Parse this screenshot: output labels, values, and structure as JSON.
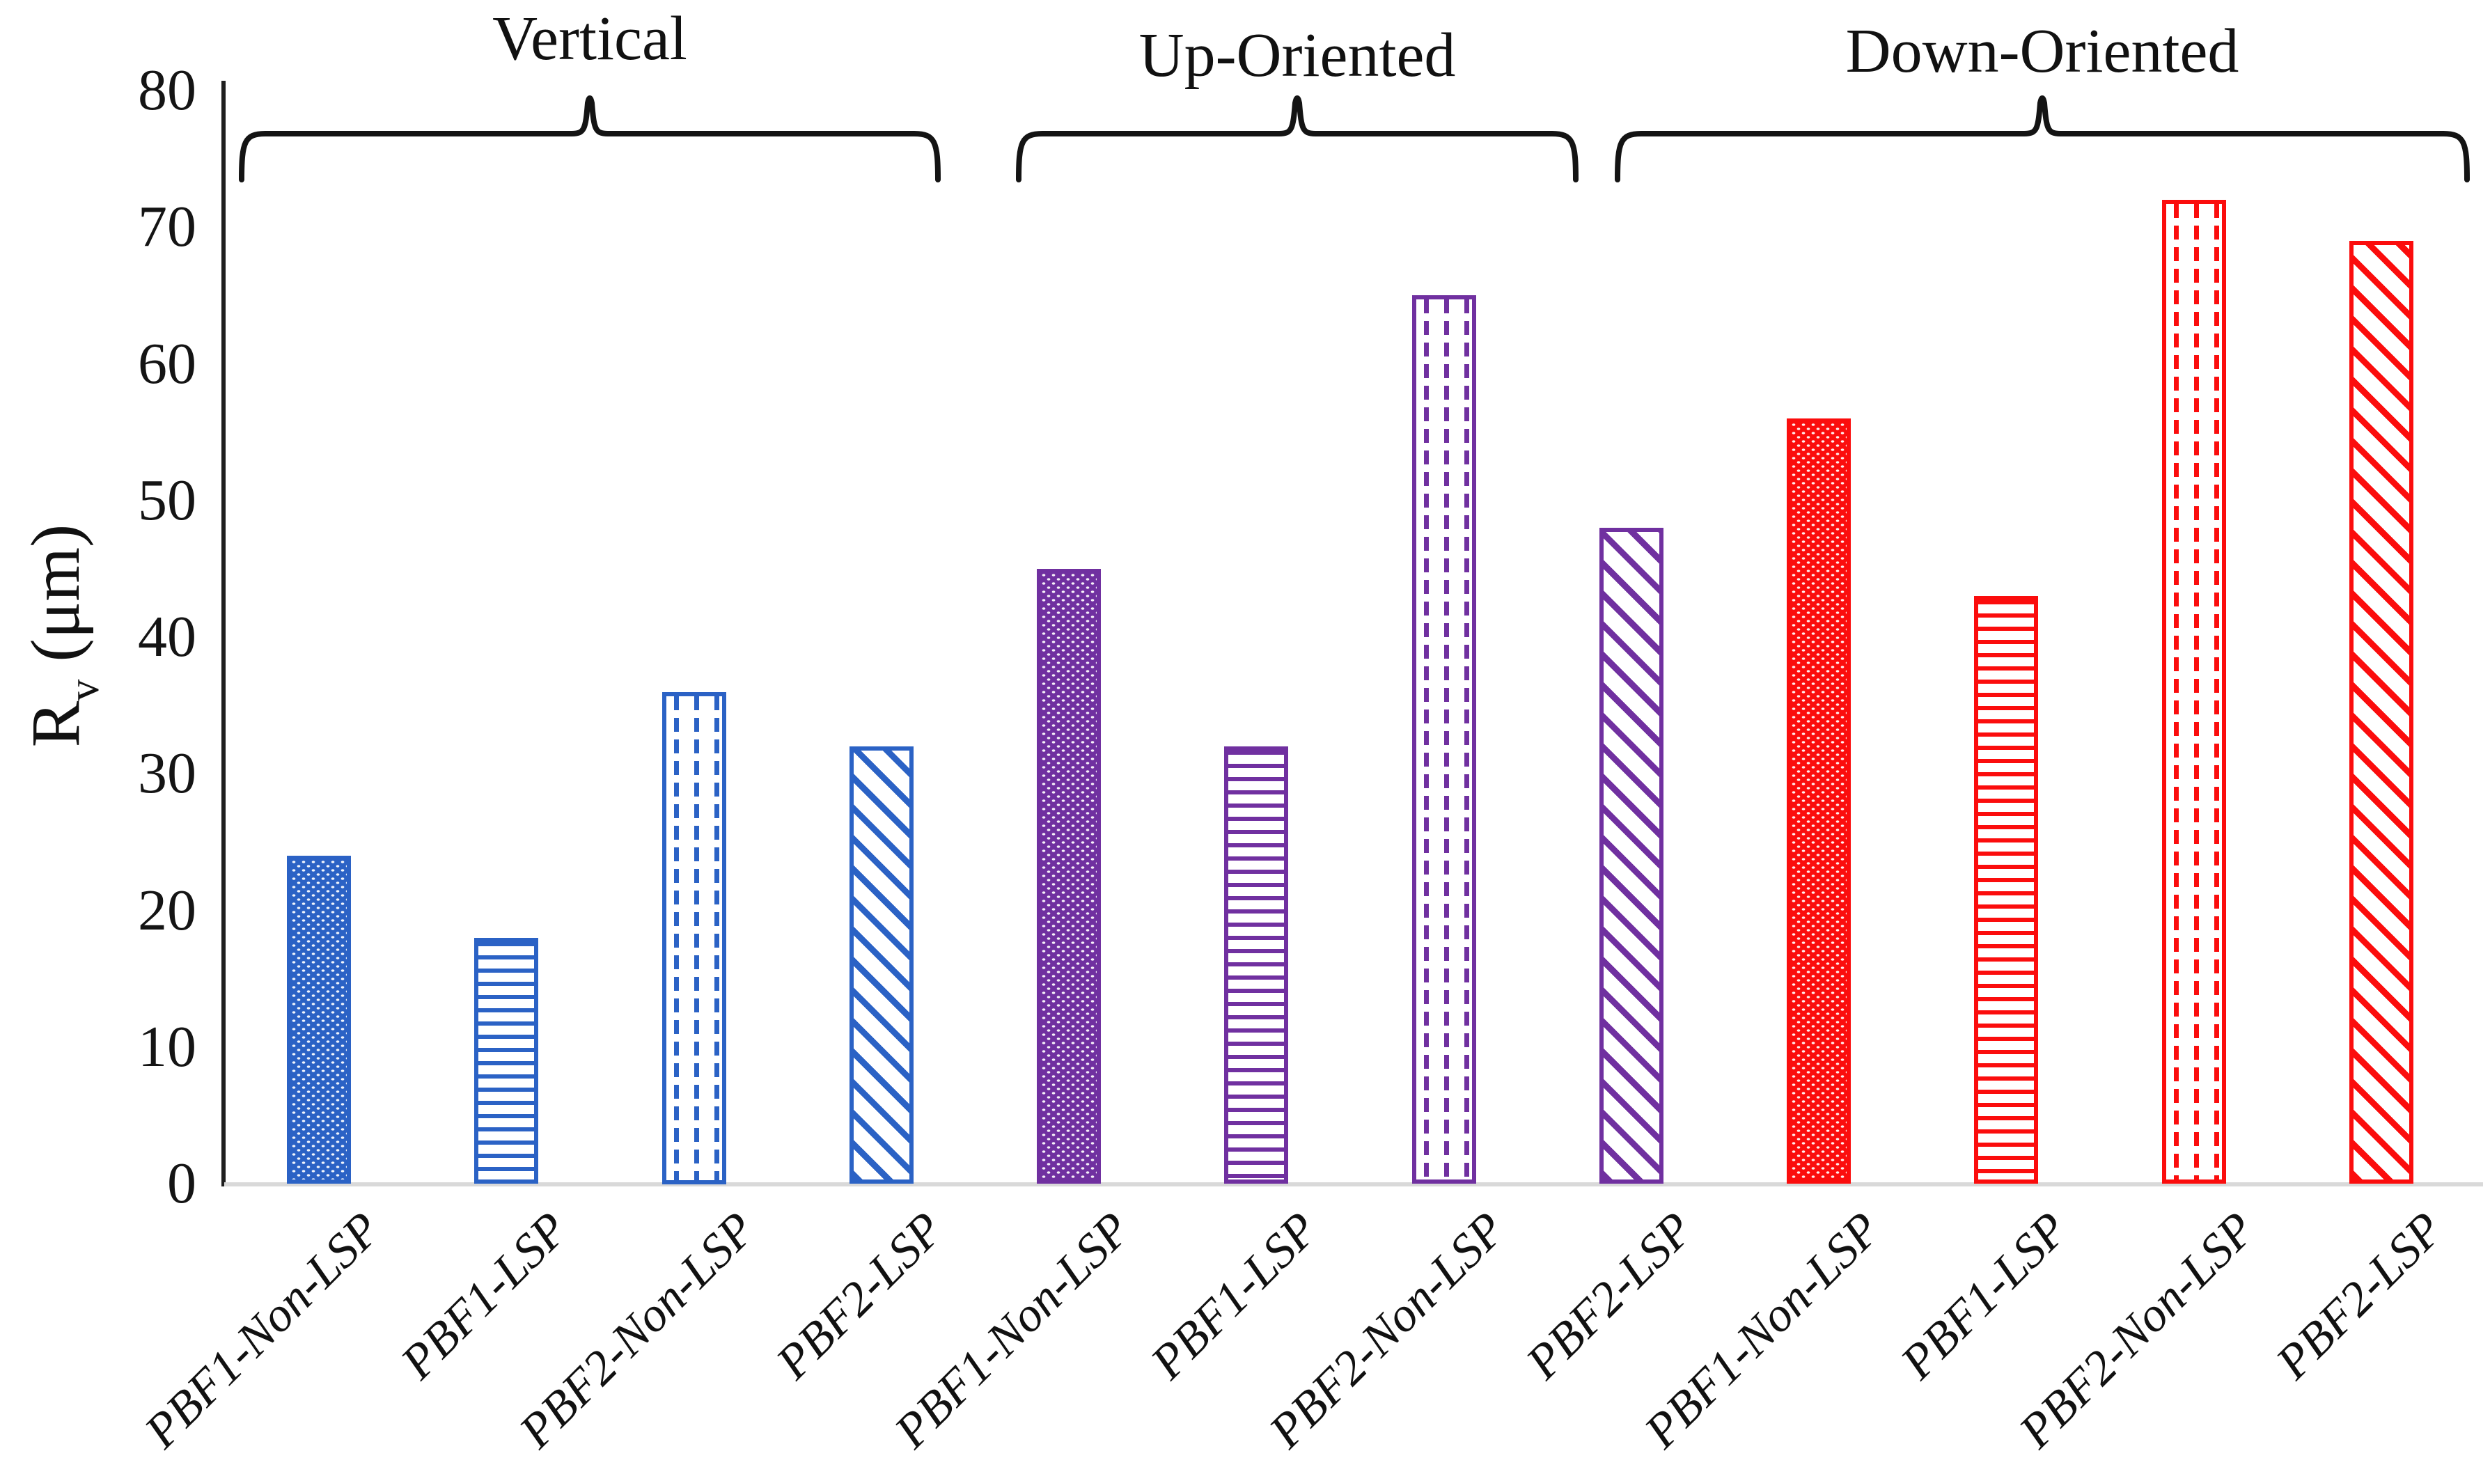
{
  "chart_data": {
    "type": "bar",
    "title": "",
    "ylabel_main": "R",
    "ylabel_sub": "v",
    "ylabel_unit": " (μm)",
    "ylabel_text": "Rv (μm)",
    "ylim": [
      0,
      80
    ],
    "yticks": [
      "0",
      "10",
      "20",
      "30",
      "40",
      "50",
      "60",
      "70",
      "80"
    ],
    "grid": false,
    "legend": false,
    "axis_color": "#1f1f1f",
    "baseline_color": "#d9d9d9",
    "categories_per_group": [
      "PBF1-Non-LSP",
      "PBF1-LSP",
      "PBF2-Non-LSP",
      "PBF2-LSP"
    ],
    "groups": [
      {
        "label": "Vertical",
        "color": "#2b62c5",
        "bars": [
          {
            "category": "PBF1-Non-LSP",
            "value": 24,
            "pattern": "dot-weave"
          },
          {
            "category": "PBF1-LSP",
            "value": 18,
            "pattern": "horizontal-lines"
          },
          {
            "category": "PBF2-Non-LSP",
            "value": 36,
            "pattern": "vertical-dashes"
          },
          {
            "category": "PBF2-LSP",
            "value": 32,
            "pattern": "diagonal-stripes"
          }
        ]
      },
      {
        "label": "Up-Oriented",
        "color": "#7030a0",
        "bars": [
          {
            "category": "PBF1-Non-LSP",
            "value": 45,
            "pattern": "dot-weave"
          },
          {
            "category": "PBF1-LSP",
            "value": 32,
            "pattern": "horizontal-lines"
          },
          {
            "category": "PBF2-Non-LSP",
            "value": 65,
            "pattern": "vertical-dashes"
          },
          {
            "category": "PBF2-LSP",
            "value": 48,
            "pattern": "diagonal-stripes"
          }
        ]
      },
      {
        "label": "Down-Oriented",
        "color": "#fb0d0d",
        "bars": [
          {
            "category": "PBF1-Non-LSP",
            "value": 56,
            "pattern": "dot-weave"
          },
          {
            "category": "PBF1-LSP",
            "value": 43,
            "pattern": "horizontal-lines"
          },
          {
            "category": "PBF2-Non-LSP",
            "value": 72,
            "pattern": "vertical-dashes"
          },
          {
            "category": "PBF2-LSP",
            "value": 69,
            "pattern": "diagonal-stripes"
          }
        ]
      }
    ]
  }
}
